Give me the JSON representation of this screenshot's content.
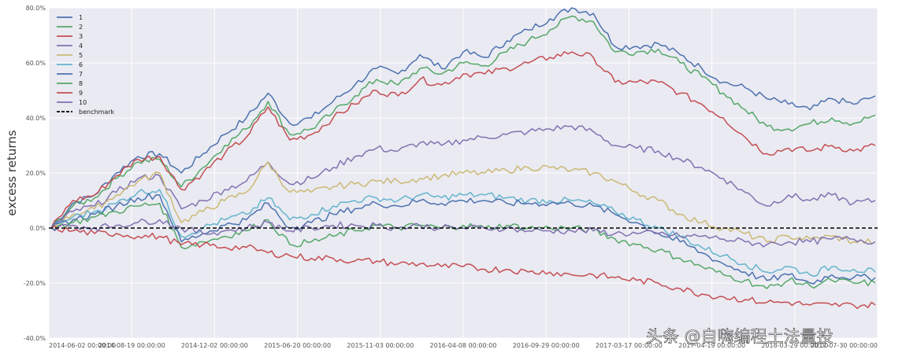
{
  "chart_data": {
    "type": "line",
    "title": "",
    "xlabel": "",
    "ylabel": "excess returns",
    "ylim": [
      -0.4,
      0.8
    ],
    "yticks": [
      -0.4,
      -0.2,
      0.0,
      0.2,
      0.4,
      0.6,
      0.8
    ],
    "ytick_labels": [
      "-40.0%",
      "-20.0%",
      "0.0%",
      "20.0%",
      "40.0%",
      "60.0%",
      "80.0%"
    ],
    "x_dates": [
      "2014-06-02",
      "2014-07-01",
      "2014-08-01",
      "2014-09-01",
      "2014-10-01",
      "2014-11-03",
      "2014-12-01",
      "2015-01-05",
      "2015-02-02",
      "2015-03-02",
      "2015-04-01",
      "2015-05-04",
      "2015-06-01",
      "2015-07-01",
      "2015-08-03",
      "2015-09-01",
      "2015-10-08",
      "2015-11-02",
      "2015-12-01",
      "2016-01-04",
      "2016-02-01",
      "2016-03-01",
      "2016-04-01",
      "2016-05-03",
      "2016-06-01",
      "2016-07-01",
      "2016-08-01",
      "2016-09-01",
      "2016-10-10",
      "2016-11-01",
      "2016-12-01",
      "2017-01-03",
      "2017-02-03",
      "2017-03-01",
      "2017-04-05",
      "2017-05-02",
      "2017-06-01",
      "2017-07-03",
      "2017-07-31"
    ],
    "xtick_labels": [
      "2014-06-02 00:00:00",
      "2014-08-19 00:00:00",
      "2014-12-02 00:00:00",
      "2015-06-20 00:00:00",
      "2015-11-03 00:00:00",
      "2016-04-08 00:00:00",
      "2016-09-29 00:00:00",
      "2017-03-17 00:00:00",
      "2017-04-19 00:00:00",
      "2018-03-29 00:00:00",
      "2017-07-30 00:00:00"
    ],
    "series": [
      {
        "name": "1",
        "color": "#4c72b0",
        "values": [
          0,
          0.09,
          0.12,
          0.2,
          0.26,
          0.27,
          0.2,
          0.27,
          0.34,
          0.4,
          0.49,
          0.38,
          0.4,
          0.46,
          0.52,
          0.58,
          0.56,
          0.63,
          0.58,
          0.64,
          0.62,
          0.68,
          0.72,
          0.76,
          0.8,
          0.78,
          0.66,
          0.66,
          0.67,
          0.63,
          0.58,
          0.53,
          0.51,
          0.47,
          0.45,
          0.43,
          0.47,
          0.45,
          0.48
        ]
      },
      {
        "name": "2",
        "color": "#55a868",
        "values": [
          0,
          0.08,
          0.11,
          0.18,
          0.24,
          0.25,
          0.15,
          0.22,
          0.3,
          0.36,
          0.46,
          0.34,
          0.36,
          0.42,
          0.48,
          0.54,
          0.52,
          0.58,
          0.56,
          0.6,
          0.59,
          0.64,
          0.68,
          0.72,
          0.77,
          0.75,
          0.64,
          0.64,
          0.65,
          0.6,
          0.55,
          0.49,
          0.43,
          0.37,
          0.36,
          0.38,
          0.4,
          0.38,
          0.41
        ]
      },
      {
        "name": "3",
        "color": "#c44e52",
        "values": [
          0,
          0.1,
          0.12,
          0.19,
          0.25,
          0.26,
          0.14,
          0.2,
          0.27,
          0.33,
          0.44,
          0.32,
          0.34,
          0.4,
          0.45,
          0.5,
          0.48,
          0.54,
          0.52,
          0.56,
          0.56,
          0.58,
          0.6,
          0.62,
          0.64,
          0.62,
          0.53,
          0.53,
          0.53,
          0.49,
          0.45,
          0.4,
          0.33,
          0.27,
          0.29,
          0.28,
          0.3,
          0.28,
          0.3
        ]
      },
      {
        "name": "4",
        "color": "#8172b2",
        "values": [
          0,
          0.06,
          0.08,
          0.13,
          0.18,
          0.19,
          0.07,
          0.1,
          0.14,
          0.17,
          0.24,
          0.16,
          0.18,
          0.22,
          0.26,
          0.29,
          0.28,
          0.31,
          0.3,
          0.32,
          0.33,
          0.34,
          0.35,
          0.36,
          0.37,
          0.35,
          0.3,
          0.29,
          0.28,
          0.25,
          0.22,
          0.18,
          0.13,
          0.08,
          0.12,
          0.1,
          0.12,
          0.09,
          0.1
        ]
      },
      {
        "name": "5",
        "color": "#ccb974",
        "values": [
          0,
          0.05,
          0.07,
          0.12,
          0.17,
          0.2,
          0.02,
          0.06,
          0.1,
          0.13,
          0.24,
          0.13,
          0.13,
          0.15,
          0.16,
          0.17,
          0.17,
          0.18,
          0.19,
          0.2,
          0.2,
          0.21,
          0.22,
          0.22,
          0.21,
          0.2,
          0.17,
          0.13,
          0.1,
          0.05,
          0.02,
          0.0,
          -0.02,
          -0.05,
          -0.03,
          -0.04,
          -0.03,
          -0.05,
          -0.05
        ]
      },
      {
        "name": "6",
        "color": "#64b5cd",
        "values": [
          0,
          0.04,
          0.06,
          0.09,
          0.13,
          0.14,
          -0.03,
          0.0,
          0.03,
          0.05,
          0.11,
          0.03,
          0.05,
          0.08,
          0.1,
          0.11,
          0.1,
          0.12,
          0.11,
          0.12,
          0.12,
          0.11,
          0.1,
          0.1,
          0.1,
          0.09,
          0.06,
          0.03,
          0.0,
          -0.03,
          -0.07,
          -0.1,
          -0.13,
          -0.16,
          -0.14,
          -0.17,
          -0.14,
          -0.15,
          -0.16
        ]
      },
      {
        "name": "7",
        "color": "#4c72b0",
        "values": [
          0,
          0.03,
          0.05,
          0.08,
          0.11,
          0.12,
          -0.05,
          -0.02,
          0.01,
          0.03,
          0.09,
          0.0,
          0.02,
          0.05,
          0.07,
          0.09,
          0.08,
          0.1,
          0.09,
          0.1,
          0.1,
          0.09,
          0.09,
          0.09,
          0.09,
          0.08,
          0.05,
          0.02,
          -0.02,
          -0.05,
          -0.09,
          -0.13,
          -0.16,
          -0.19,
          -0.17,
          -0.2,
          -0.17,
          -0.18,
          -0.18
        ]
      },
      {
        "name": "8",
        "color": "#55a868",
        "values": [
          0,
          0.02,
          0.04,
          0.06,
          0.08,
          0.09,
          -0.07,
          -0.05,
          -0.03,
          -0.01,
          0.03,
          -0.06,
          -0.05,
          -0.03,
          -0.01,
          0.01,
          0.0,
          0.01,
          0.0,
          0.01,
          0.0,
          0.01,
          0.0,
          0.0,
          0.0,
          -0.01,
          -0.04,
          -0.06,
          -0.08,
          -0.11,
          -0.14,
          -0.17,
          -0.19,
          -0.22,
          -0.19,
          -0.21,
          -0.19,
          -0.2,
          -0.2
        ]
      },
      {
        "name": "9",
        "color": "#c44e52",
        "values": [
          0,
          -0.01,
          -0.02,
          -0.02,
          -0.03,
          -0.03,
          -0.06,
          -0.06,
          -0.07,
          -0.07,
          -0.09,
          -0.1,
          -0.11,
          -0.11,
          -0.12,
          -0.12,
          -0.13,
          -0.13,
          -0.14,
          -0.14,
          -0.15,
          -0.15,
          -0.16,
          -0.16,
          -0.17,
          -0.17,
          -0.18,
          -0.19,
          -0.2,
          -0.22,
          -0.24,
          -0.25,
          -0.26,
          -0.27,
          -0.27,
          -0.28,
          -0.28,
          -0.28,
          -0.28
        ]
      },
      {
        "name": "10",
        "color": "#8172b2",
        "values": [
          0,
          0.01,
          0.0,
          0.01,
          0.02,
          0.03,
          0.0,
          -0.02,
          -0.01,
          0.0,
          0.02,
          -0.01,
          0.0,
          0.01,
          0.01,
          0.01,
          0.0,
          0.01,
          0.0,
          0.0,
          0.0,
          0.0,
          -0.01,
          -0.01,
          -0.01,
          -0.01,
          -0.02,
          -0.02,
          -0.02,
          -0.03,
          -0.03,
          -0.04,
          -0.05,
          -0.06,
          -0.05,
          -0.05,
          -0.04,
          -0.04,
          -0.05
        ]
      }
    ],
    "benchmark": {
      "name": "benchmark",
      "color": "#000000",
      "style": "dashed",
      "value": 0.0
    },
    "legend_position": "top-left",
    "grid": true
  },
  "watermark": "头条 @自嗨编程土法量投"
}
